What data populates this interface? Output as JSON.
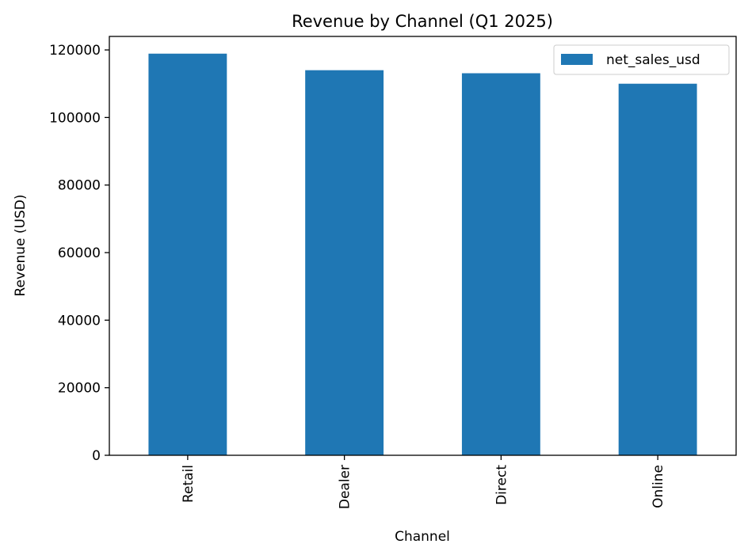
{
  "chart_data": {
    "type": "bar",
    "title": "Revenue by Channel (Q1 2025)",
    "xlabel": "Channel",
    "ylabel": "Revenue (USD)",
    "categories": [
      "Retail",
      "Dealer",
      "Direct",
      "Online"
    ],
    "series": [
      {
        "name": "net_sales_usd",
        "values": [
          118900,
          114000,
          113100,
          110000
        ],
        "color": "#1f77b4"
      }
    ],
    "ylim": [
      0,
      124000
    ],
    "yticks": [
      0,
      20000,
      40000,
      60000,
      80000,
      100000,
      120000
    ],
    "ytick_labels": [
      "0",
      "20000",
      "40000",
      "60000",
      "80000",
      "100000",
      "120000"
    ],
    "grid": false,
    "legend_position": "top-right"
  }
}
